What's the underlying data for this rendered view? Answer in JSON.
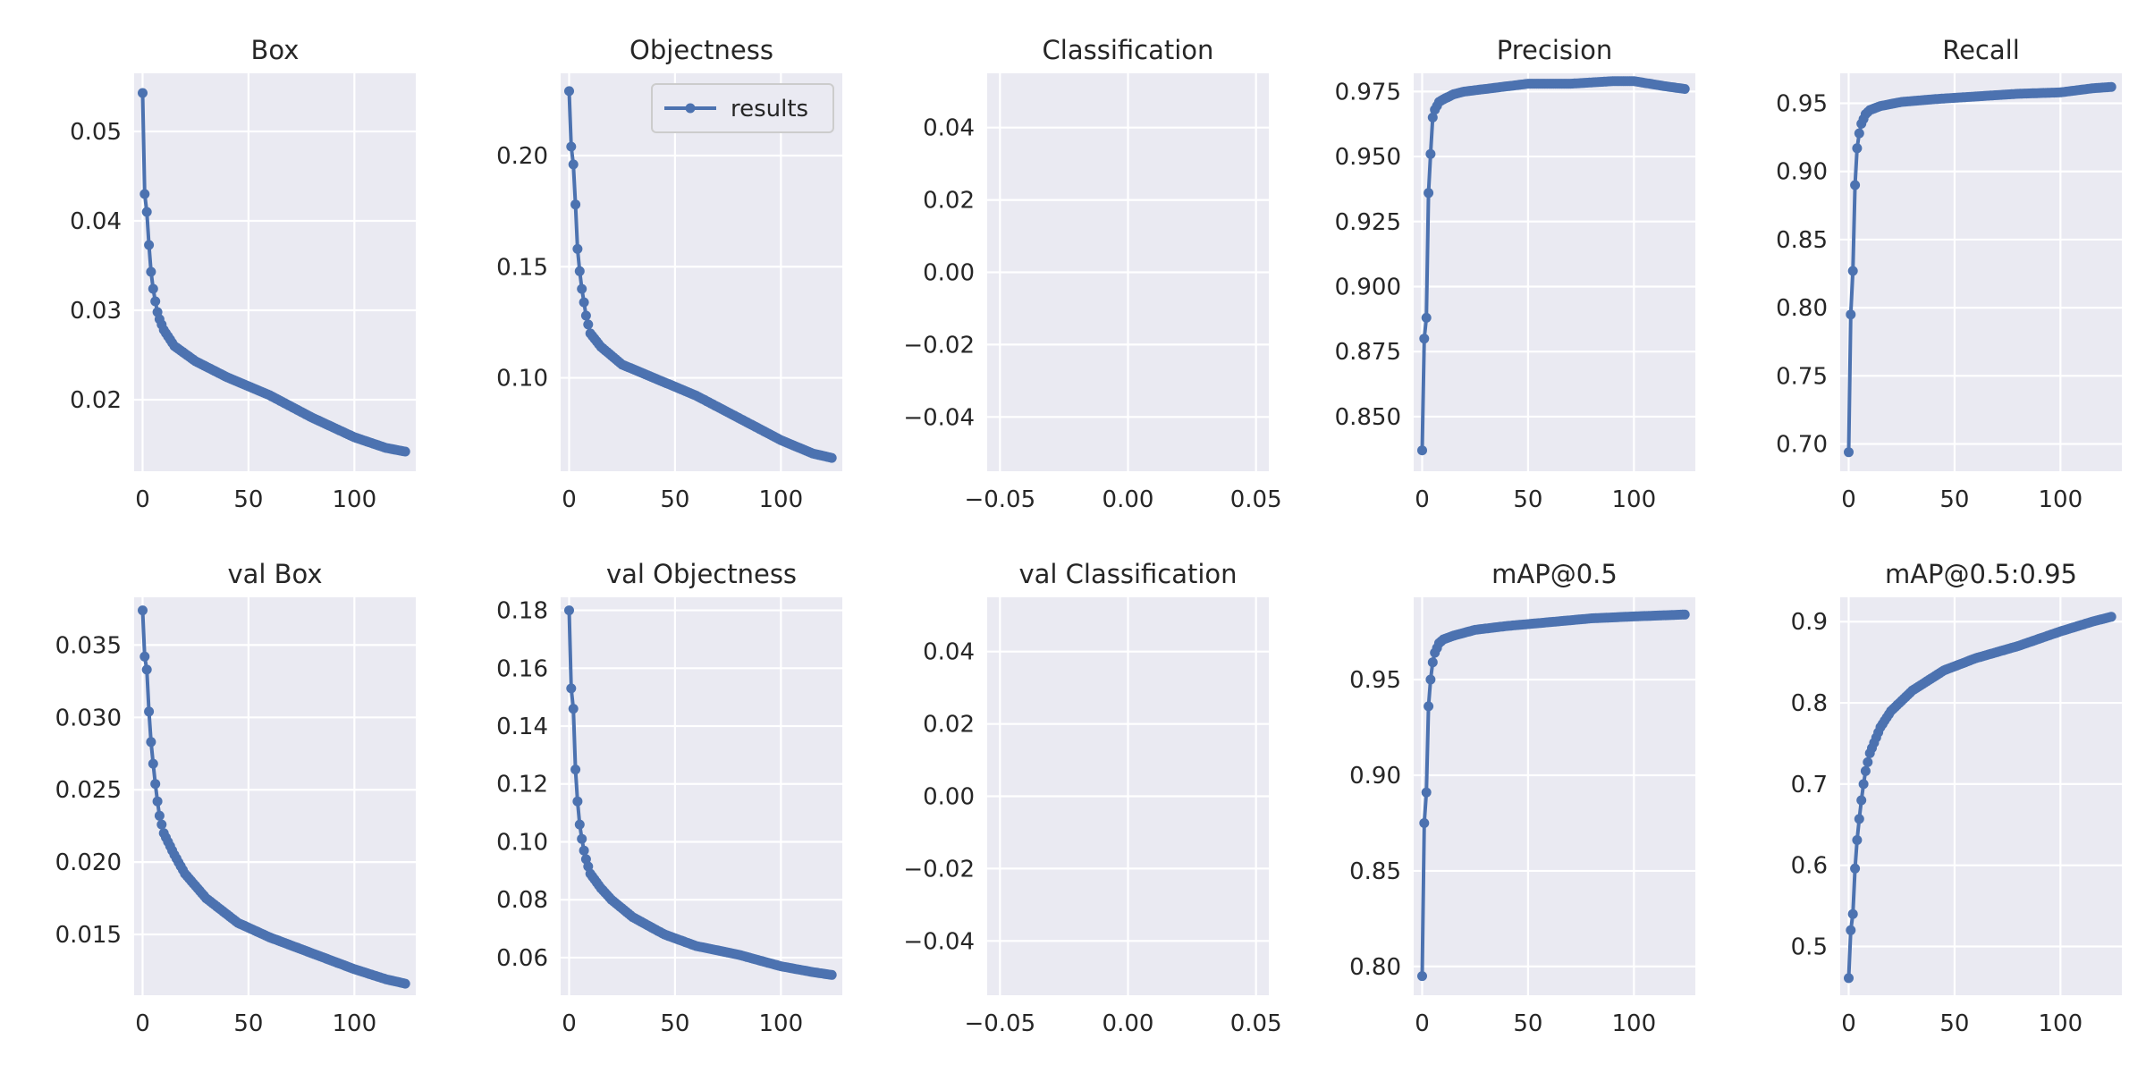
{
  "figure": {
    "line_color": "#4c72b0",
    "axes_bg": "#eaeaf2",
    "grid_color": "#ffffff",
    "text_color": "#262626"
  },
  "chart_data": [
    {
      "type": "line",
      "title": "Box",
      "grid": true,
      "xlim": [
        -4,
        129
      ],
      "ylim": [
        0.012,
        0.0565
      ],
      "xticks": [
        0,
        50,
        100
      ],
      "yticks": [
        0.02,
        0.03,
        0.04,
        0.05
      ],
      "xtick_labels": [
        "0",
        "50",
        "100"
      ],
      "ytick_labels": [
        "0.02",
        "0.03",
        "0.04",
        "0.05"
      ],
      "legend": null,
      "series": [
        {
          "x_start": 0,
          "x_step": 1,
          "knots": [
            [
              0,
              0.0543
            ],
            [
              1,
              0.043
            ],
            [
              2,
              0.041
            ],
            [
              3,
              0.0373
            ],
            [
              4,
              0.0343
            ],
            [
              5,
              0.0324
            ],
            [
              6,
              0.031
            ],
            [
              7,
              0.0298
            ],
            [
              8,
              0.029
            ],
            [
              10,
              0.0278
            ],
            [
              15,
              0.026
            ],
            [
              25,
              0.0243
            ],
            [
              40,
              0.0225
            ],
            [
              60,
              0.0205
            ],
            [
              80,
              0.018
            ],
            [
              100,
              0.0158
            ],
            [
              115,
              0.0146
            ],
            [
              124,
              0.0142
            ]
          ]
        }
      ]
    },
    {
      "type": "line",
      "title": "Objectness",
      "grid": true,
      "xlim": [
        -4,
        129
      ],
      "ylim": [
        0.058,
        0.237
      ],
      "xticks": [
        0,
        50,
        100
      ],
      "yticks": [
        0.1,
        0.15,
        0.2
      ],
      "xtick_labels": [
        "0",
        "50",
        "100"
      ],
      "ytick_labels": [
        "0.10",
        "0.15",
        "0.20"
      ],
      "legend": {
        "label": "results",
        "loc": "upper right"
      },
      "series": [
        {
          "name": "results",
          "x_start": 0,
          "x_step": 1,
          "knots": [
            [
              0,
              0.229
            ],
            [
              1,
              0.204
            ],
            [
              2,
              0.196
            ],
            [
              3,
              0.178
            ],
            [
              4,
              0.158
            ],
            [
              5,
              0.148
            ],
            [
              6,
              0.14
            ],
            [
              7,
              0.134
            ],
            [
              8,
              0.128
            ],
            [
              10,
              0.12
            ],
            [
              15,
              0.114
            ],
            [
              25,
              0.106
            ],
            [
              40,
              0.1
            ],
            [
              60,
              0.092
            ],
            [
              80,
              0.082
            ],
            [
              100,
              0.072
            ],
            [
              115,
              0.066
            ],
            [
              124,
              0.064
            ]
          ]
        }
      ]
    },
    {
      "type": "line",
      "title": "Classification",
      "grid": true,
      "xlim": [
        -0.055,
        0.055
      ],
      "ylim": [
        -0.055,
        0.055
      ],
      "xticks": [
        -0.05,
        0.0,
        0.05
      ],
      "yticks": [
        -0.04,
        -0.02,
        0.0,
        0.02,
        0.04
      ],
      "xtick_labels": [
        "−0.05",
        "0.00",
        "0.05"
      ],
      "ytick_labels": [
        "−0.04",
        "−0.02",
        "0.00",
        "0.02",
        "0.04"
      ],
      "legend": null,
      "series": []
    },
    {
      "type": "line",
      "title": "Precision",
      "grid": true,
      "xlim": [
        -4,
        129
      ],
      "ylim": [
        0.829,
        0.982
      ],
      "xticks": [
        0,
        50,
        100
      ],
      "yticks": [
        0.85,
        0.875,
        0.9,
        0.925,
        0.95,
        0.975
      ],
      "xtick_labels": [
        "0",
        "50",
        "100"
      ],
      "ytick_labels": [
        "0.850",
        "0.875",
        "0.900",
        "0.925",
        "0.950",
        "0.975"
      ],
      "legend": null,
      "series": [
        {
          "x_start": 0,
          "x_step": 1,
          "knots": [
            [
              0,
              0.837
            ],
            [
              1,
              0.88
            ],
            [
              2,
              0.888
            ],
            [
              3,
              0.936
            ],
            [
              4,
              0.951
            ],
            [
              5,
              0.965
            ],
            [
              6,
              0.968
            ],
            [
              8,
              0.971
            ],
            [
              10,
              0.972
            ],
            [
              15,
              0.974
            ],
            [
              20,
              0.975
            ],
            [
              30,
              0.976
            ],
            [
              50,
              0.978
            ],
            [
              70,
              0.978
            ],
            [
              90,
              0.979
            ],
            [
              100,
              0.979
            ],
            [
              115,
              0.977
            ],
            [
              124,
              0.976
            ]
          ]
        }
      ]
    },
    {
      "type": "line",
      "title": "Recall",
      "grid": true,
      "xlim": [
        -4,
        129
      ],
      "ylim": [
        0.68,
        0.972
      ],
      "xticks": [
        0,
        50,
        100
      ],
      "yticks": [
        0.7,
        0.75,
        0.8,
        0.85,
        0.9,
        0.95
      ],
      "xtick_labels": [
        "0",
        "50",
        "100"
      ],
      "ytick_labels": [
        "0.70",
        "0.75",
        "0.80",
        "0.85",
        "0.90",
        "0.95"
      ],
      "legend": null,
      "series": [
        {
          "x_start": 0,
          "x_step": 1,
          "knots": [
            [
              0,
              0.694
            ],
            [
              1,
              0.795
            ],
            [
              2,
              0.827
            ],
            [
              3,
              0.89
            ],
            [
              4,
              0.917
            ],
            [
              5,
              0.928
            ],
            [
              6,
              0.935
            ],
            [
              8,
              0.942
            ],
            [
              10,
              0.945
            ],
            [
              15,
              0.948
            ],
            [
              25,
              0.951
            ],
            [
              40,
              0.953
            ],
            [
              60,
              0.955
            ],
            [
              80,
              0.957
            ],
            [
              100,
              0.958
            ],
            [
              115,
              0.961
            ],
            [
              124,
              0.962
            ]
          ]
        }
      ]
    },
    {
      "type": "line",
      "title": "val Box",
      "grid": true,
      "xlim": [
        -4,
        129
      ],
      "ylim": [
        0.0108,
        0.0383
      ],
      "xticks": [
        0,
        50,
        100
      ],
      "yticks": [
        0.015,
        0.02,
        0.025,
        0.03,
        0.035
      ],
      "xtick_labels": [
        "0",
        "50",
        "100"
      ],
      "ytick_labels": [
        "0.015",
        "0.020",
        "0.025",
        "0.030",
        "0.035"
      ],
      "legend": null,
      "series": [
        {
          "x_start": 0,
          "x_step": 1,
          "knots": [
            [
              0,
              0.0374
            ],
            [
              1,
              0.0342
            ],
            [
              2,
              0.0333
            ],
            [
              3,
              0.0304
            ],
            [
              4,
              0.0283
            ],
            [
              5,
              0.0268
            ],
            [
              6,
              0.0254
            ],
            [
              7,
              0.0242
            ],
            [
              8,
              0.0232
            ],
            [
              10,
              0.022
            ],
            [
              15,
              0.0205
            ],
            [
              20,
              0.0192
            ],
            [
              30,
              0.0175
            ],
            [
              45,
              0.0158
            ],
            [
              60,
              0.0148
            ],
            [
              80,
              0.0137
            ],
            [
              100,
              0.0126
            ],
            [
              115,
              0.0119
            ],
            [
              124,
              0.0116
            ]
          ]
        }
      ]
    },
    {
      "type": "line",
      "title": "val Objectness",
      "grid": true,
      "xlim": [
        -4,
        129
      ],
      "ylim": [
        0.047,
        0.1845
      ],
      "xticks": [
        0,
        50,
        100
      ],
      "yticks": [
        0.06,
        0.08,
        0.1,
        0.12,
        0.14,
        0.16,
        0.18
      ],
      "xtick_labels": [
        "0",
        "50",
        "100"
      ],
      "ytick_labels": [
        "0.06",
        "0.08",
        "0.10",
        "0.12",
        "0.14",
        "0.16",
        "0.18"
      ],
      "legend": null,
      "series": [
        {
          "x_start": 0,
          "x_step": 1,
          "knots": [
            [
              0,
              0.18
            ],
            [
              1,
              0.153
            ],
            [
              2,
              0.146
            ],
            [
              3,
              0.125
            ],
            [
              4,
              0.114
            ],
            [
              5,
              0.106
            ],
            [
              6,
              0.101
            ],
            [
              7,
              0.097
            ],
            [
              8,
              0.094
            ],
            [
              10,
              0.089
            ],
            [
              15,
              0.084
            ],
            [
              20,
              0.08
            ],
            [
              30,
              0.074
            ],
            [
              45,
              0.068
            ],
            [
              60,
              0.064
            ],
            [
              80,
              0.061
            ],
            [
              100,
              0.057
            ],
            [
              115,
              0.055
            ],
            [
              124,
              0.054
            ]
          ]
        }
      ]
    },
    {
      "type": "line",
      "title": "val Classification",
      "grid": true,
      "xlim": [
        -0.055,
        0.055
      ],
      "ylim": [
        -0.055,
        0.055
      ],
      "xticks": [
        -0.05,
        0.0,
        0.05
      ],
      "yticks": [
        -0.04,
        -0.02,
        0.0,
        0.02,
        0.04
      ],
      "xtick_labels": [
        "−0.05",
        "0.00",
        "0.05"
      ],
      "ytick_labels": [
        "−0.04",
        "−0.02",
        "0.00",
        "0.02",
        "0.04"
      ],
      "legend": null,
      "series": []
    },
    {
      "type": "line",
      "title": "mAP@0.5",
      "grid": true,
      "xlim": [
        -4,
        129
      ],
      "ylim": [
        0.785,
        0.993
      ],
      "xticks": [
        0,
        50,
        100
      ],
      "yticks": [
        0.8,
        0.85,
        0.9,
        0.95
      ],
      "xtick_labels": [
        "0",
        "50",
        "100"
      ],
      "ytick_labels": [
        "0.80",
        "0.85",
        "0.90",
        "0.95"
      ],
      "legend": null,
      "series": [
        {
          "x_start": 0,
          "x_step": 1,
          "knots": [
            [
              0,
              0.795
            ],
            [
              1,
              0.875
            ],
            [
              2,
              0.891
            ],
            [
              3,
              0.936
            ],
            [
              4,
              0.95
            ],
            [
              5,
              0.959
            ],
            [
              6,
              0.964
            ],
            [
              8,
              0.969
            ],
            [
              10,
              0.971
            ],
            [
              15,
              0.973
            ],
            [
              25,
              0.976
            ],
            [
              40,
              0.978
            ],
            [
              60,
              0.98
            ],
            [
              80,
              0.982
            ],
            [
              100,
              0.983
            ],
            [
              124,
              0.984
            ]
          ]
        }
      ]
    },
    {
      "type": "line",
      "title": "mAP@0.5:0.95",
      "grid": true,
      "xlim": [
        -4,
        129
      ],
      "ylim": [
        0.44,
        0.93
      ],
      "xticks": [
        0,
        50,
        100
      ],
      "yticks": [
        0.5,
        0.6,
        0.7,
        0.8,
        0.9
      ],
      "xtick_labels": [
        "0",
        "50",
        "100"
      ],
      "ytick_labels": [
        "0.5",
        "0.6",
        "0.7",
        "0.8",
        "0.9"
      ],
      "legend": null,
      "series": [
        {
          "x_start": 0,
          "x_step": 1,
          "knots": [
            [
              0,
              0.461
            ],
            [
              1,
              0.52
            ],
            [
              2,
              0.54
            ],
            [
              3,
              0.596
            ],
            [
              4,
              0.631
            ],
            [
              5,
              0.657
            ],
            [
              6,
              0.68
            ],
            [
              7,
              0.7
            ],
            [
              8,
              0.716
            ],
            [
              10,
              0.738
            ],
            [
              15,
              0.77
            ],
            [
              20,
              0.79
            ],
            [
              30,
              0.815
            ],
            [
              45,
              0.84
            ],
            [
              60,
              0.855
            ],
            [
              80,
              0.87
            ],
            [
              100,
              0.888
            ],
            [
              115,
              0.9
            ],
            [
              124,
              0.906
            ]
          ]
        }
      ]
    }
  ]
}
